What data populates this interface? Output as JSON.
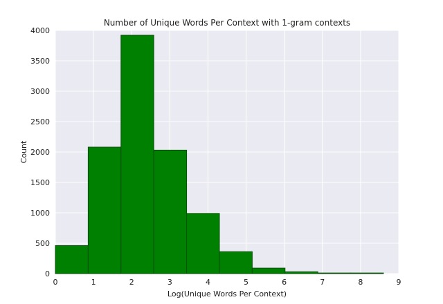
{
  "chart_data": {
    "type": "bar",
    "title": "Number of Unique Words Per Context with 1-gram contexts",
    "xlabel": "Log(Unique Words Per Context)",
    "ylabel": "Count",
    "xlim": [
      0,
      9
    ],
    "ylim": [
      0,
      4000
    ],
    "xticks": [
      0,
      1,
      2,
      3,
      4,
      5,
      6,
      7,
      8,
      9
    ],
    "yticks": [
      0,
      500,
      1000,
      1500,
      2000,
      2500,
      3000,
      3500,
      4000
    ],
    "grid": true,
    "bins": [
      {
        "start": 0.0,
        "end": 0.86,
        "value": 460
      },
      {
        "start": 0.86,
        "end": 1.72,
        "value": 2080
      },
      {
        "start": 1.72,
        "end": 2.58,
        "value": 3920
      },
      {
        "start": 2.58,
        "end": 3.44,
        "value": 2030
      },
      {
        "start": 3.44,
        "end": 4.3,
        "value": 990
      },
      {
        "start": 4.3,
        "end": 5.16,
        "value": 360
      },
      {
        "start": 5.16,
        "end": 6.02,
        "value": 90
      },
      {
        "start": 6.02,
        "end": 6.88,
        "value": 30
      },
      {
        "start": 6.88,
        "end": 7.74,
        "value": 10
      },
      {
        "start": 7.74,
        "end": 8.6,
        "value": 10
      }
    ],
    "colors": {
      "bar": "#008000",
      "bar_edge": "#0a4f0a",
      "plot_bg": "#eaeaf2",
      "grid": "#ffffff"
    }
  }
}
